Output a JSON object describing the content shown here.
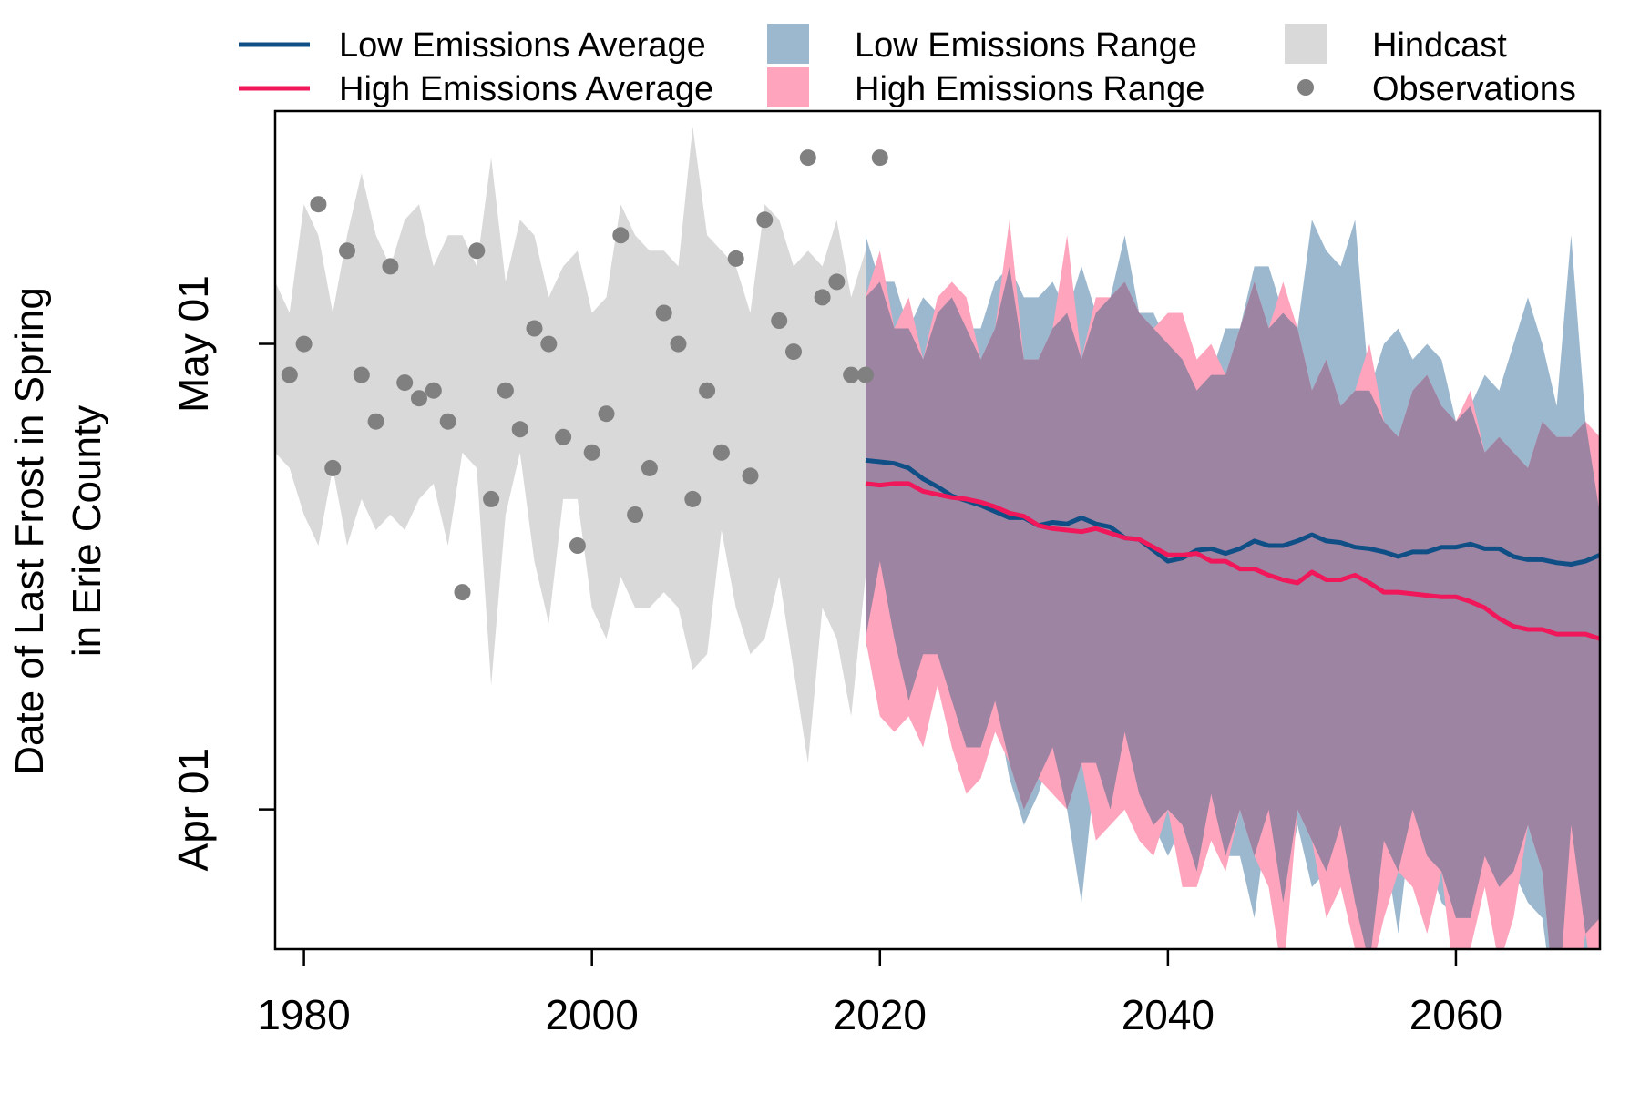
{
  "chart_data": {
    "type": "line",
    "ylabel": [
      "Date of Last Frost in Spring",
      "in Erie County"
    ],
    "xlabel": "",
    "xlim": [
      1978,
      2070
    ],
    "ylim_day_of_year": [
      82,
      136
    ],
    "x_ticks": [
      1980,
      2000,
      2020,
      2040,
      2060
    ],
    "y_ticks": [
      {
        "label": "Apr 01",
        "value": 91
      },
      {
        "label": "May 01",
        "value": 121
      }
    ],
    "grid": false,
    "legend": {
      "placement": "top-outside",
      "items": [
        {
          "label": "Low Emissions Average",
          "kind": "line",
          "color": "#0f4f86"
        },
        {
          "label": "High Emissions Average",
          "kind": "line",
          "color": "#f0185a"
        },
        {
          "label": "Low Emissions Range",
          "kind": "box",
          "color": "#9cb8cf"
        },
        {
          "label": "High Emissions Range",
          "kind": "box",
          "color": "#fea4bc"
        },
        {
          "label": "Hindcast",
          "kind": "box",
          "color": "#d9d9d9"
        },
        {
          "label": "Observations",
          "kind": "point",
          "color": "#808080"
        }
      ]
    },
    "colors": {
      "hindcast": "#d9d9d9",
      "low_range": "#9cb8cf",
      "high_range": "#fea4bc",
      "overlap": "#9d84a2",
      "low_avg": "#0f4f86",
      "high_avg": "#f0185a",
      "observations": "#808080"
    },
    "hindcast": {
      "x": [
        1978,
        1979,
        1980,
        1981,
        1982,
        1983,
        1984,
        1985,
        1986,
        1987,
        1988,
        1989,
        1990,
        1991,
        1992,
        1993,
        1994,
        1995,
        1996,
        1997,
        1998,
        1999,
        2000,
        2001,
        2002,
        2003,
        2004,
        2005,
        2006,
        2007,
        2008,
        2009,
        2010,
        2011,
        2012,
        2013,
        2014,
        2015,
        2016,
        2017,
        2018,
        2019
      ],
      "upper": [
        125,
        123,
        130,
        128,
        123,
        128,
        132,
        128,
        126,
        129,
        130,
        126,
        128,
        128,
        126,
        133,
        125,
        129,
        128,
        124,
        126,
        127,
        123,
        124,
        130,
        128,
        127,
        127,
        126,
        135,
        128,
        127,
        126,
        123,
        130,
        129,
        126,
        127,
        126,
        129,
        124,
        127
      ],
      "lower": [
        114,
        113,
        110,
        108,
        113,
        108,
        111,
        109,
        110,
        109,
        111,
        112,
        108,
        114,
        113,
        99,
        110,
        114,
        107,
        103,
        111,
        111,
        104,
        102,
        106,
        104,
        104,
        105,
        104,
        100,
        101,
        109,
        104,
        101,
        102,
        106,
        100,
        94,
        104,
        102,
        97,
        106
      ]
    },
    "observations": {
      "x": [
        1979,
        1980,
        1981,
        1982,
        1983,
        1984,
        1985,
        1986,
        1987,
        1988,
        1989,
        1990,
        1991,
        1992,
        1993,
        1994,
        1995,
        1996,
        1997,
        1998,
        1999,
        2000,
        2001,
        2002,
        2003,
        2004,
        2005,
        2006,
        2007,
        2008,
        2009,
        2010,
        2011,
        2012,
        2013,
        2014,
        2015,
        2016,
        2017,
        2018,
        2019,
        2020
      ],
      "y": [
        119,
        121,
        130,
        113,
        127,
        119,
        116,
        126,
        118.5,
        117.5,
        118,
        116,
        105,
        127,
        111,
        118,
        115.5,
        122,
        121,
        115,
        108,
        114,
        116.5,
        128,
        110,
        113,
        123,
        121,
        111,
        118,
        114,
        126.5,
        112.5,
        129,
        122.5,
        120.5,
        133,
        124,
        125,
        119,
        119,
        133
      ]
    },
    "low_range": {
      "x": [
        2019,
        2020,
        2021,
        2022,
        2023,
        2024,
        2025,
        2026,
        2027,
        2028,
        2029,
        2030,
        2031,
        2032,
        2033,
        2034,
        2035,
        2036,
        2037,
        2038,
        2039,
        2040,
        2041,
        2042,
        2043,
        2044,
        2045,
        2046,
        2047,
        2048,
        2049,
        2050,
        2051,
        2052,
        2053,
        2054,
        2055,
        2056,
        2057,
        2058,
        2059,
        2060,
        2061,
        2062,
        2063,
        2064,
        2065,
        2066,
        2067,
        2068,
        2069,
        2070
      ],
      "upper": [
        128,
        125,
        125,
        122,
        124,
        123,
        124,
        122,
        122,
        125,
        126,
        124,
        124,
        125,
        123,
        126,
        123,
        124,
        128,
        123,
        123,
        121,
        120,
        118,
        119,
        122,
        122,
        126,
        126,
        123,
        122,
        129,
        127,
        126,
        129,
        118,
        121,
        122,
        120,
        121,
        120,
        116,
        117,
        119,
        118,
        121,
        124,
        121,
        117,
        128,
        116,
        110
      ],
      "lower": [
        101,
        107,
        102,
        98,
        101,
        101,
        98,
        95,
        95,
        98,
        93,
        90,
        92,
        95,
        91,
        85,
        94,
        91,
        96,
        92,
        90,
        88,
        90,
        87,
        92,
        88,
        88,
        84,
        91,
        85,
        90,
        86,
        87,
        90,
        85,
        81,
        89,
        83,
        91,
        88,
        85,
        84,
        84,
        88,
        86,
        87,
        85,
        84,
        77,
        90,
        80,
        84
      ]
    },
    "high_range": {
      "x": [
        2019,
        2020,
        2021,
        2022,
        2023,
        2024,
        2025,
        2026,
        2027,
        2028,
        2029,
        2030,
        2031,
        2032,
        2033,
        2034,
        2035,
        2036,
        2037,
        2038,
        2039,
        2040,
        2041,
        2042,
        2043,
        2044,
        2045,
        2046,
        2047,
        2048,
        2049,
        2050,
        2051,
        2052,
        2053,
        2054,
        2055,
        2056,
        2057,
        2058,
        2059,
        2060,
        2061,
        2062,
        2063,
        2064,
        2065,
        2066,
        2067,
        2068,
        2069,
        2070
      ],
      "upper": [
        124,
        127,
        122,
        124,
        120,
        124,
        125,
        124,
        120,
        122,
        129,
        120,
        120,
        122,
        128,
        120,
        124,
        124,
        125,
        123,
        122,
        123,
        123,
        120,
        121,
        119,
        122,
        125,
        122,
        125,
        122,
        118,
        120,
        117,
        118,
        121,
        116,
        115,
        118,
        119,
        117,
        116,
        118,
        114,
        115,
        114,
        113,
        116,
        115,
        115,
        116,
        115
      ],
      "lower": [
        102,
        97,
        96,
        97,
        95,
        99,
        95,
        92,
        93,
        96,
        94,
        91,
        93,
        92,
        91,
        94,
        89,
        90,
        91,
        89,
        88,
        91,
        86,
        86,
        89,
        87,
        91,
        88,
        86,
        80,
        91,
        89,
        84,
        86,
        82,
        80,
        84,
        87,
        86,
        83,
        87,
        79,
        82,
        86,
        81,
        84,
        90,
        87,
        77,
        77,
        83,
        77
      ]
    },
    "low_average": {
      "x": [
        2019,
        2020,
        2021,
        2022,
        2023,
        2024,
        2025,
        2026,
        2027,
        2028,
        2029,
        2030,
        2031,
        2032,
        2033,
        2034,
        2035,
        2036,
        2037,
        2038,
        2039,
        2040,
        2041,
        2042,
        2043,
        2044,
        2045,
        2046,
        2047,
        2048,
        2049,
        2050,
        2051,
        2052,
        2053,
        2054,
        2055,
        2056,
        2057,
        2058,
        2059,
        2060,
        2061,
        2062,
        2063,
        2064,
        2065,
        2066,
        2067,
        2068,
        2069,
        2070
      ],
      "y": [
        113.5,
        113.4,
        113.3,
        113.0,
        112.3,
        111.8,
        111.2,
        110.9,
        110.6,
        110.2,
        109.8,
        109.8,
        109.3,
        109.5,
        109.4,
        109.8,
        109.4,
        109.2,
        108.5,
        108.4,
        107.7,
        107.0,
        107.2,
        107.7,
        107.8,
        107.5,
        107.8,
        108.3,
        108.0,
        108.0,
        108.3,
        108.7,
        108.3,
        108.2,
        107.9,
        107.8,
        107.6,
        107.3,
        107.6,
        107.6,
        107.9,
        107.9,
        108.1,
        107.8,
        107.8,
        107.3,
        107.1,
        107.1,
        106.9,
        106.8,
        107.0,
        107.4
      ]
    },
    "high_average": {
      "x": [
        2019,
        2020,
        2021,
        2022,
        2023,
        2024,
        2025,
        2026,
        2027,
        2028,
        2029,
        2030,
        2031,
        2032,
        2033,
        2034,
        2035,
        2036,
        2037,
        2038,
        2039,
        2040,
        2041,
        2042,
        2043,
        2044,
        2045,
        2046,
        2047,
        2048,
        2049,
        2050,
        2051,
        2052,
        2053,
        2054,
        2055,
        2056,
        2057,
        2058,
        2059,
        2060,
        2061,
        2062,
        2063,
        2064,
        2065,
        2066,
        2067,
        2068,
        2069,
        2070
      ],
      "y": [
        112.0,
        111.9,
        112.0,
        112.0,
        111.5,
        111.3,
        111.1,
        111.0,
        110.8,
        110.5,
        110.1,
        109.9,
        109.3,
        109.1,
        109.0,
        108.9,
        109.1,
        108.8,
        108.5,
        108.4,
        107.9,
        107.4,
        107.4,
        107.5,
        107.0,
        107.0,
        106.5,
        106.5,
        106.1,
        105.8,
        105.6,
        106.3,
        105.8,
        105.8,
        106.1,
        105.6,
        105.0,
        105.0,
        104.9,
        104.8,
        104.7,
        104.7,
        104.4,
        104.0,
        103.3,
        102.8,
        102.6,
        102.6,
        102.3,
        102.3,
        102.3,
        102.0
      ]
    }
  }
}
